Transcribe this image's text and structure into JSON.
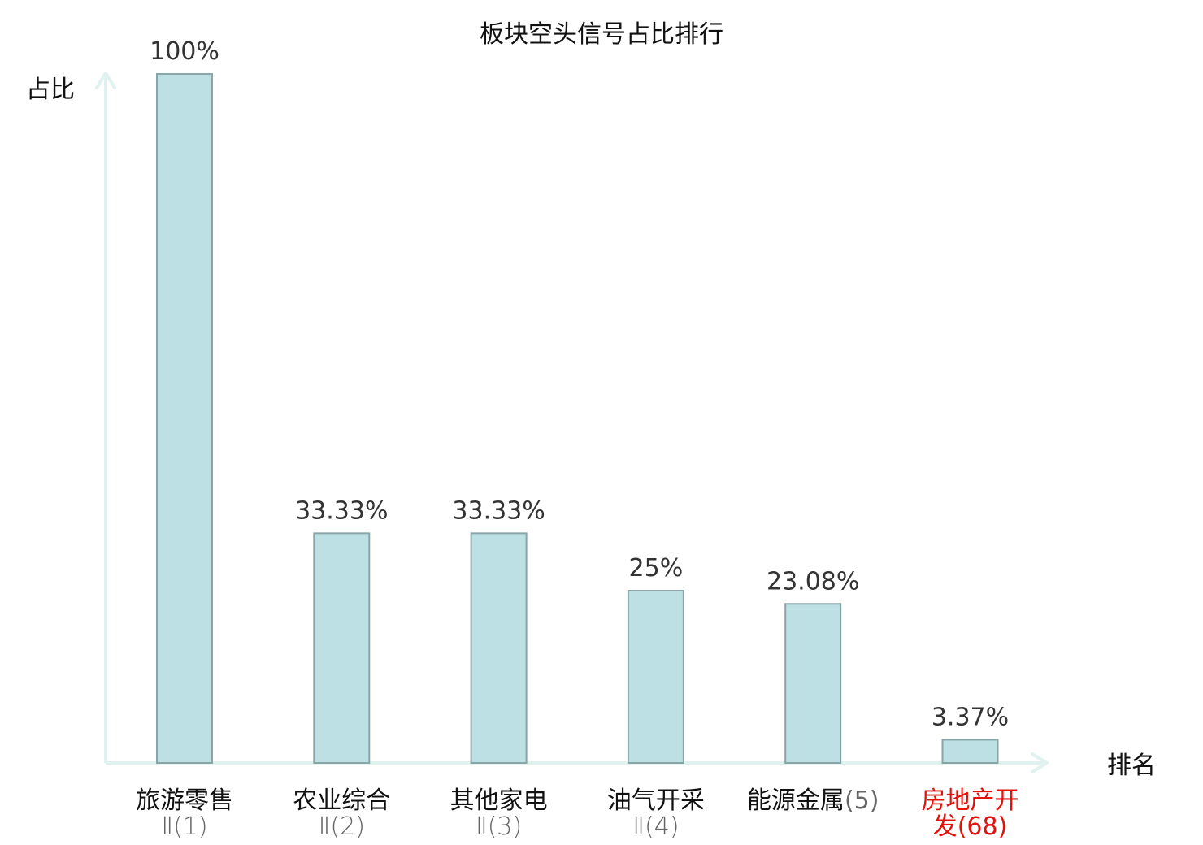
{
  "chart_data": {
    "type": "bar",
    "title": "板块空头信号占比排行",
    "ylabel": "占比",
    "xlabel": "排名",
    "ylim": [
      0,
      100
    ],
    "grid": false,
    "legend": "none",
    "categories": [
      {
        "name": "旅游零售",
        "rank": "Ⅱ(1)",
        "highlight": false
      },
      {
        "name": "农业综合",
        "rank": "Ⅱ(2)",
        "highlight": false
      },
      {
        "name": "其他家电",
        "rank": "Ⅱ(3)",
        "highlight": false
      },
      {
        "name": "油气开采",
        "rank": "Ⅱ(4)",
        "highlight": false
      },
      {
        "name": "能源金属",
        "rank": "(5)",
        "highlight": false
      },
      {
        "name": "房地产开发",
        "rank": "(68)",
        "highlight": true
      }
    ],
    "values": [
      100,
      33.33,
      33.33,
      25,
      23.08,
      3.37
    ],
    "value_labels": [
      "100%",
      "33.33%",
      "33.33%",
      "25%",
      "23.08%",
      "3.37%"
    ]
  },
  "colors": {
    "bar_fill": "#bce0e3",
    "bar_stroke": "#8aa5a8",
    "axis": "#e0f2ef",
    "highlight_text": "#e3120b",
    "normal_text": "#111111",
    "rank_text": "#666666"
  }
}
